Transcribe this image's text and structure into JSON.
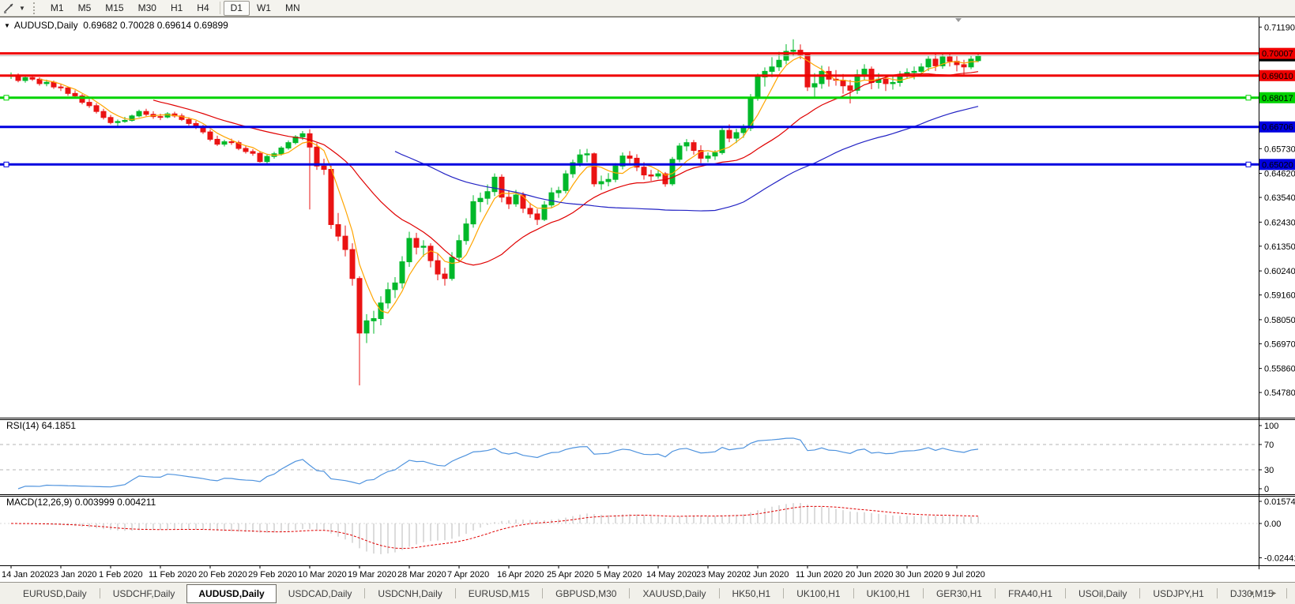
{
  "toolbar": {
    "timeframes": [
      "M1",
      "M5",
      "M15",
      "M30",
      "H1",
      "H4",
      "D1",
      "W1",
      "MN"
    ],
    "active": "D1"
  },
  "chart_header": {
    "title": "AUDUSD,Daily",
    "ohlc": "0.69682 0.70028 0.69614 0.69899"
  },
  "indicators": {
    "rsi": {
      "label": "RSI(14) 64.1851",
      "value": 64.1851,
      "period": 14,
      "scale_labels": [
        "100",
        "70",
        "30",
        "0"
      ],
      "scale_values": [
        100,
        70,
        30,
        0
      ],
      "level_lines": [
        70,
        30
      ],
      "color": "#4f93de"
    },
    "macd": {
      "label": "MACD(12,26,9) 0.003999 0.004211",
      "params": [
        12,
        26,
        9
      ],
      "values": [
        0.003999,
        0.004211
      ],
      "scale_labels": [
        "0.015741",
        "0.00",
        "-0.024412"
      ],
      "scale_values": [
        0.015741,
        0,
        -0.024412
      ],
      "histogram_color": "#b9b9b9",
      "signal_color": "#e00000"
    }
  },
  "tabs": {
    "items": [
      "EURUSD,Daily",
      "USDCHF,Daily",
      "AUDUSD,Daily",
      "USDCAD,Daily",
      "USDCNH,Daily",
      "EURUSD,M15",
      "GBPUSD,M30",
      "XAUUSD,Daily",
      "HK50,H1",
      "UK100,H1",
      "UK100,H1",
      "GER30,H1",
      "FRA40,H1",
      "USOil,Daily",
      "USDJPY,H1",
      "DJ30,M15"
    ],
    "active_index": 2
  },
  "pager": {
    "left_icon": "◄",
    "right_icon": "►"
  },
  "chart_data": {
    "type": "candlestick",
    "symbol": "AUDUSD",
    "timeframe": "Daily",
    "current_price": 0.69899,
    "current_price_label": "0.69899",
    "price_axis": {
      "top": 0.71625,
      "bottom": 0.5365
    },
    "price_ticks": [
      "0.71190",
      "0.65730",
      "0.64620",
      "0.63540",
      "0.62430",
      "0.61350",
      "0.60240",
      "0.59160",
      "0.58050",
      "0.56970",
      "0.55860",
      "0.54780"
    ],
    "colors": {
      "up": "#00b82a",
      "down": "#ea1313",
      "background": "#ffffff",
      "current_line": "#bcbcbc"
    },
    "hlines": [
      {
        "price": 0.70007,
        "label": "0.70007",
        "color": "#f00000",
        "text_color": "#000000",
        "selected": false
      },
      {
        "price": 0.6901,
        "label": "0.69010",
        "color": "#f00000",
        "text_color": "#000000",
        "selected": false
      },
      {
        "price": 0.68017,
        "label": "0.68017",
        "color": "#00d300",
        "text_color": "#000000",
        "selected": true
      },
      {
        "price": 0.66706,
        "label": "0.66706",
        "color": "#0000e0",
        "text_color": "#ffffff",
        "selected": false
      },
      {
        "price": 0.6502,
        "label": "0.65020",
        "color": "#0000e0",
        "text_color": "#ffffff",
        "selected": true
      }
    ],
    "moving_averages": [
      {
        "period": 5,
        "color": "#ffa500"
      },
      {
        "period": 21,
        "color": "#e00000"
      },
      {
        "period": 55,
        "color": "#2222c4"
      }
    ],
    "time_labels": [
      "14 Jan 2020",
      "23 Jan 2020",
      "1 Feb 2020",
      "11 Feb 2020",
      "20 Feb 2020",
      "29 Feb 2020",
      "10 Mar 2020",
      "19 Mar 2020",
      "28 Mar 2020",
      "7 Apr 2020",
      "16 Apr 2020",
      "25 Apr 2020",
      "5 May 2020",
      "14 May 2020",
      "23 May 2020",
      "2 Jun 2020",
      "11 Jun 2020",
      "20 Jun 2020",
      "30 Jun 2020",
      "9 Jul 2020"
    ],
    "time_label_step": 7,
    "ohlc": [
      [
        0.6898,
        0.6915,
        0.6886,
        0.6903
      ],
      [
        0.6903,
        0.6911,
        0.6871,
        0.6879
      ],
      [
        0.6879,
        0.6898,
        0.6869,
        0.6892
      ],
      [
        0.6892,
        0.6904,
        0.6877,
        0.6885
      ],
      [
        0.6885,
        0.6893,
        0.6856,
        0.6865
      ],
      [
        0.6865,
        0.6883,
        0.6853,
        0.6871
      ],
      [
        0.6871,
        0.6879,
        0.6841,
        0.685
      ],
      [
        0.685,
        0.6864,
        0.6832,
        0.6846
      ],
      [
        0.6846,
        0.6852,
        0.681,
        0.6821
      ],
      [
        0.6821,
        0.6835,
        0.68,
        0.681
      ],
      [
        0.681,
        0.6818,
        0.6772,
        0.6781
      ],
      [
        0.6781,
        0.6796,
        0.6756,
        0.6766
      ],
      [
        0.6766,
        0.6778,
        0.6731,
        0.674
      ],
      [
        0.674,
        0.6752,
        0.6704,
        0.6713
      ],
      [
        0.6713,
        0.6724,
        0.6682,
        0.669
      ],
      [
        0.669,
        0.6704,
        0.667,
        0.6695
      ],
      [
        0.6695,
        0.6716,
        0.6689,
        0.67
      ],
      [
        0.67,
        0.6726,
        0.6694,
        0.672
      ],
      [
        0.672,
        0.6748,
        0.6714,
        0.674
      ],
      [
        0.674,
        0.6752,
        0.6719,
        0.6727
      ],
      [
        0.6727,
        0.6741,
        0.6707,
        0.6717
      ],
      [
        0.6717,
        0.673,
        0.6701,
        0.6715
      ],
      [
        0.6715,
        0.6737,
        0.6709,
        0.6729
      ],
      [
        0.6729,
        0.6739,
        0.6712,
        0.672
      ],
      [
        0.672,
        0.6731,
        0.6697,
        0.6704
      ],
      [
        0.6704,
        0.6714,
        0.6677,
        0.6686
      ],
      [
        0.6686,
        0.6698,
        0.6661,
        0.667
      ],
      [
        0.667,
        0.668,
        0.6639,
        0.6648
      ],
      [
        0.6648,
        0.6659,
        0.6606,
        0.6615
      ],
      [
        0.6615,
        0.6631,
        0.6585,
        0.6593
      ],
      [
        0.6593,
        0.6613,
        0.6583,
        0.6604
      ],
      [
        0.6604,
        0.6618,
        0.659,
        0.66
      ],
      [
        0.66,
        0.6609,
        0.6566,
        0.6574
      ],
      [
        0.6574,
        0.6588,
        0.6551,
        0.656
      ],
      [
        0.656,
        0.6571,
        0.6541,
        0.6552
      ],
      [
        0.6552,
        0.6562,
        0.651,
        0.6515
      ],
      [
        0.6515,
        0.6546,
        0.6506,
        0.6538
      ],
      [
        0.6538,
        0.6559,
        0.6528,
        0.655
      ],
      [
        0.655,
        0.6584,
        0.6542,
        0.6576
      ],
      [
        0.6576,
        0.661,
        0.6568,
        0.66
      ],
      [
        0.66,
        0.6634,
        0.6592,
        0.6626
      ],
      [
        0.6626,
        0.6652,
        0.6612,
        0.664
      ],
      [
        0.664,
        0.666,
        0.63,
        0.658
      ],
      [
        0.658,
        0.6598,
        0.6478,
        0.6495
      ],
      [
        0.6495,
        0.6528,
        0.6455,
        0.648
      ],
      [
        0.648,
        0.6496,
        0.6213,
        0.6232
      ],
      [
        0.6232,
        0.6284,
        0.6158,
        0.618
      ],
      [
        0.618,
        0.6228,
        0.6089,
        0.612
      ],
      [
        0.612,
        0.6148,
        0.5958,
        0.599
      ],
      [
        0.599,
        0.6,
        0.551,
        0.5745
      ],
      [
        0.5745,
        0.583,
        0.57,
        0.58
      ],
      [
        0.58,
        0.5845,
        0.5742,
        0.581
      ],
      [
        0.581,
        0.591,
        0.578,
        0.588
      ],
      [
        0.588,
        0.5972,
        0.5855,
        0.594
      ],
      [
        0.594,
        0.5996,
        0.5902,
        0.597
      ],
      [
        0.597,
        0.609,
        0.5945,
        0.6065
      ],
      [
        0.6065,
        0.62,
        0.6042,
        0.617
      ],
      [
        0.617,
        0.6195,
        0.6098,
        0.613
      ],
      [
        0.613,
        0.6162,
        0.6088,
        0.6135
      ],
      [
        0.6135,
        0.6148,
        0.604,
        0.607
      ],
      [
        0.607,
        0.6102,
        0.5982,
        0.601
      ],
      [
        0.601,
        0.6038,
        0.5958,
        0.599
      ],
      [
        0.599,
        0.6108,
        0.598,
        0.6085
      ],
      [
        0.6085,
        0.6186,
        0.6062,
        0.616
      ],
      [
        0.616,
        0.626,
        0.6142,
        0.6235
      ],
      [
        0.6235,
        0.6364,
        0.6218,
        0.6335
      ],
      [
        0.6335,
        0.6376,
        0.6288,
        0.635
      ],
      [
        0.635,
        0.6412,
        0.6322,
        0.638
      ],
      [
        0.638,
        0.6462,
        0.636,
        0.6445
      ],
      [
        0.6445,
        0.6458,
        0.6332,
        0.6355
      ],
      [
        0.6355,
        0.6386,
        0.6302,
        0.6325
      ],
      [
        0.6325,
        0.6388,
        0.6312,
        0.6365
      ],
      [
        0.6365,
        0.6378,
        0.6284,
        0.6305
      ],
      [
        0.6305,
        0.633,
        0.6262,
        0.628
      ],
      [
        0.628,
        0.6302,
        0.623,
        0.6255
      ],
      [
        0.6255,
        0.6338,
        0.6248,
        0.632
      ],
      [
        0.632,
        0.6398,
        0.6308,
        0.6375
      ],
      [
        0.6375,
        0.6402,
        0.6352,
        0.6385
      ],
      [
        0.6385,
        0.6476,
        0.6372,
        0.646
      ],
      [
        0.646,
        0.6524,
        0.6442,
        0.651
      ],
      [
        0.651,
        0.657,
        0.6492,
        0.6545
      ],
      [
        0.6545,
        0.6572,
        0.6512,
        0.655
      ],
      [
        0.655,
        0.6556,
        0.6402,
        0.6415
      ],
      [
        0.6415,
        0.6452,
        0.6388,
        0.6425
      ],
      [
        0.6425,
        0.6463,
        0.6404,
        0.6435
      ],
      [
        0.6435,
        0.6508,
        0.6422,
        0.6495
      ],
      [
        0.6495,
        0.6556,
        0.648,
        0.654
      ],
      [
        0.654,
        0.6562,
        0.6506,
        0.653
      ],
      [
        0.653,
        0.6548,
        0.6472,
        0.649
      ],
      [
        0.649,
        0.6512,
        0.6434,
        0.6455
      ],
      [
        0.6455,
        0.6478,
        0.6428,
        0.645
      ],
      [
        0.645,
        0.6476,
        0.6438,
        0.646
      ],
      [
        0.646,
        0.6468,
        0.6402,
        0.6415
      ],
      [
        0.6415,
        0.6536,
        0.6406,
        0.6525
      ],
      [
        0.6525,
        0.6598,
        0.6512,
        0.6585
      ],
      [
        0.6585,
        0.6616,
        0.6562,
        0.66
      ],
      [
        0.66,
        0.6612,
        0.6546,
        0.6565
      ],
      [
        0.6565,
        0.6588,
        0.6508,
        0.653
      ],
      [
        0.653,
        0.6556,
        0.6512,
        0.654
      ],
      [
        0.654,
        0.6566,
        0.6522,
        0.6555
      ],
      [
        0.6555,
        0.6672,
        0.6546,
        0.6655
      ],
      [
        0.6655,
        0.6682,
        0.6602,
        0.662
      ],
      [
        0.662,
        0.6662,
        0.6598,
        0.6645
      ],
      [
        0.6645,
        0.6683,
        0.6622,
        0.6665
      ],
      [
        0.6665,
        0.6818,
        0.6652,
        0.68
      ],
      [
        0.68,
        0.691,
        0.6788,
        0.6895
      ],
      [
        0.6895,
        0.6938,
        0.6852,
        0.692
      ],
      [
        0.692,
        0.6984,
        0.6894,
        0.694
      ],
      [
        0.694,
        0.7008,
        0.6922,
        0.697
      ],
      [
        0.697,
        0.7042,
        0.6952,
        0.701
      ],
      [
        0.701,
        0.7064,
        0.6988,
        0.7015
      ],
      [
        0.7015,
        0.7041,
        0.6975,
        0.6995
      ],
      [
        0.6995,
        0.7003,
        0.6832,
        0.685
      ],
      [
        0.685,
        0.6912,
        0.6798,
        0.6865
      ],
      [
        0.6865,
        0.6946,
        0.6842,
        0.692
      ],
      [
        0.692,
        0.6942,
        0.6852,
        0.6885
      ],
      [
        0.6885,
        0.6926,
        0.6856,
        0.688
      ],
      [
        0.688,
        0.6908,
        0.682,
        0.6855
      ],
      [
        0.6855,
        0.6882,
        0.6776,
        0.6835
      ],
      [
        0.6835,
        0.6928,
        0.6818,
        0.6905
      ],
      [
        0.6905,
        0.6952,
        0.688,
        0.693
      ],
      [
        0.693,
        0.6942,
        0.684,
        0.687
      ],
      [
        0.687,
        0.6912,
        0.6842,
        0.6885
      ],
      [
        0.6885,
        0.6902,
        0.6832,
        0.6865
      ],
      [
        0.6865,
        0.6898,
        0.6838,
        0.687
      ],
      [
        0.687,
        0.6922,
        0.6852,
        0.6905
      ],
      [
        0.6905,
        0.6934,
        0.6886,
        0.6915
      ],
      [
        0.6915,
        0.6942,
        0.6884,
        0.692
      ],
      [
        0.692,
        0.6956,
        0.6902,
        0.694
      ],
      [
        0.694,
        0.6988,
        0.6922,
        0.6975
      ],
      [
        0.6975,
        0.6998,
        0.6922,
        0.6945
      ],
      [
        0.6945,
        0.7,
        0.6932,
        0.6985
      ],
      [
        0.6985,
        0.6998,
        0.6942,
        0.6965
      ],
      [
        0.6965,
        0.6988,
        0.692,
        0.695
      ],
      [
        0.695,
        0.6972,
        0.6902,
        0.694
      ],
      [
        0.694,
        0.6992,
        0.693,
        0.6975
      ],
      [
        0.69682,
        0.70028,
        0.69614,
        0.69899
      ]
    ]
  }
}
